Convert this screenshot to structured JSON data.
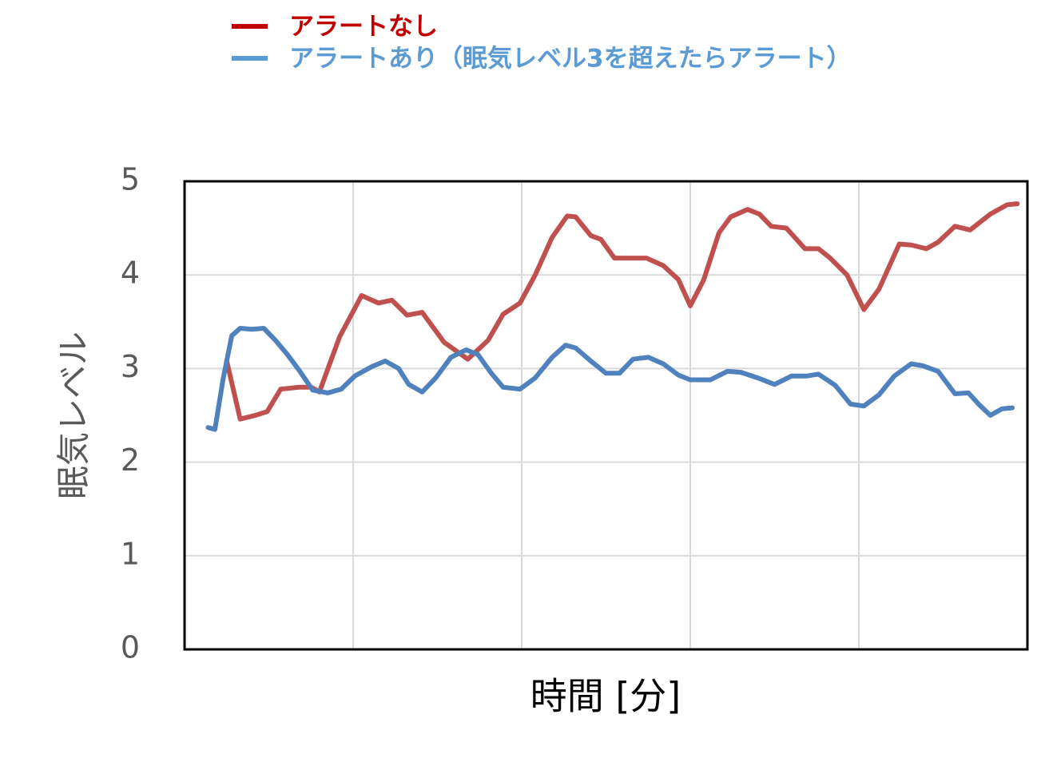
{
  "chart_data": {
    "type": "line",
    "ylabel": "眠気レベル",
    "xlabel": "時間 [分]",
    "xlim": [
      0,
      5
    ],
    "xticks": [
      1,
      2,
      3,
      4
    ],
    "ylim": [
      0,
      5
    ],
    "yticks": [
      0,
      1,
      2,
      3,
      4,
      5
    ],
    "grid": true,
    "legend": "top",
    "series": [
      {
        "name": "アラートなし",
        "color": "#c0504d",
        "legend_color": "#c00000",
        "x": [
          0.25,
          0.33,
          0.42,
          0.49,
          0.57,
          0.68,
          0.75,
          0.8,
          0.92,
          1.05,
          1.15,
          1.23,
          1.32,
          1.41,
          1.54,
          1.68,
          1.8,
          1.89,
          1.99,
          2.08,
          2.18,
          2.27,
          2.32,
          2.41,
          2.47,
          2.55,
          2.65,
          2.74,
          2.84,
          2.93,
          3.0,
          3.08,
          3.17,
          3.24,
          3.34,
          3.41,
          3.48,
          3.57,
          3.68,
          3.76,
          3.83,
          3.93,
          4.03,
          4.12,
          4.24,
          4.31,
          4.4,
          4.47,
          4.57,
          4.66,
          4.78,
          4.88,
          4.94
        ],
        "values": [
          3.08,
          2.46,
          2.5,
          2.54,
          2.78,
          2.8,
          2.8,
          2.75,
          3.34,
          3.78,
          3.7,
          3.73,
          3.57,
          3.6,
          3.28,
          3.1,
          3.3,
          3.58,
          3.7,
          4.0,
          4.4,
          4.63,
          4.62,
          4.42,
          4.38,
          4.18,
          4.18,
          4.18,
          4.1,
          3.95,
          3.67,
          3.95,
          4.45,
          4.62,
          4.7,
          4.65,
          4.52,
          4.5,
          4.28,
          4.28,
          4.18,
          4.0,
          3.63,
          3.85,
          4.33,
          4.32,
          4.28,
          4.35,
          4.52,
          4.48,
          4.65,
          4.75,
          4.76
        ]
      },
      {
        "name": "アラートあり（眠気レベル3を超えたらアラート）",
        "color": "#4f81bd",
        "legend_color": "#5b9bd5",
        "x": [
          0.14,
          0.18,
          0.23,
          0.28,
          0.33,
          0.4,
          0.47,
          0.54,
          0.61,
          0.68,
          0.76,
          0.85,
          0.93,
          1.01,
          1.11,
          1.19,
          1.27,
          1.33,
          1.41,
          1.49,
          1.58,
          1.67,
          1.74,
          1.82,
          1.89,
          1.99,
          2.08,
          2.18,
          2.26,
          2.32,
          2.41,
          2.5,
          2.58,
          2.66,
          2.75,
          2.84,
          2.93,
          3.0,
          3.12,
          3.22,
          3.3,
          3.4,
          3.5,
          3.6,
          3.69,
          3.76,
          3.86,
          3.95,
          4.03,
          4.12,
          4.21,
          4.31,
          4.38,
          4.47,
          4.57,
          4.65,
          4.71,
          4.78,
          4.85,
          4.91
        ],
        "values": [
          2.37,
          2.35,
          2.9,
          3.35,
          3.43,
          3.42,
          3.43,
          3.3,
          3.15,
          2.98,
          2.77,
          2.74,
          2.78,
          2.92,
          3.02,
          3.08,
          3.0,
          2.83,
          2.75,
          2.9,
          3.12,
          3.2,
          3.15,
          2.95,
          2.8,
          2.78,
          2.9,
          3.12,
          3.25,
          3.22,
          3.08,
          2.95,
          2.95,
          3.1,
          3.12,
          3.05,
          2.93,
          2.88,
          2.88,
          2.97,
          2.96,
          2.9,
          2.83,
          2.92,
          2.92,
          2.94,
          2.82,
          2.62,
          2.6,
          2.72,
          2.92,
          3.05,
          3.03,
          2.97,
          2.73,
          2.74,
          2.62,
          2.5,
          2.57,
          2.58
        ]
      }
    ]
  }
}
